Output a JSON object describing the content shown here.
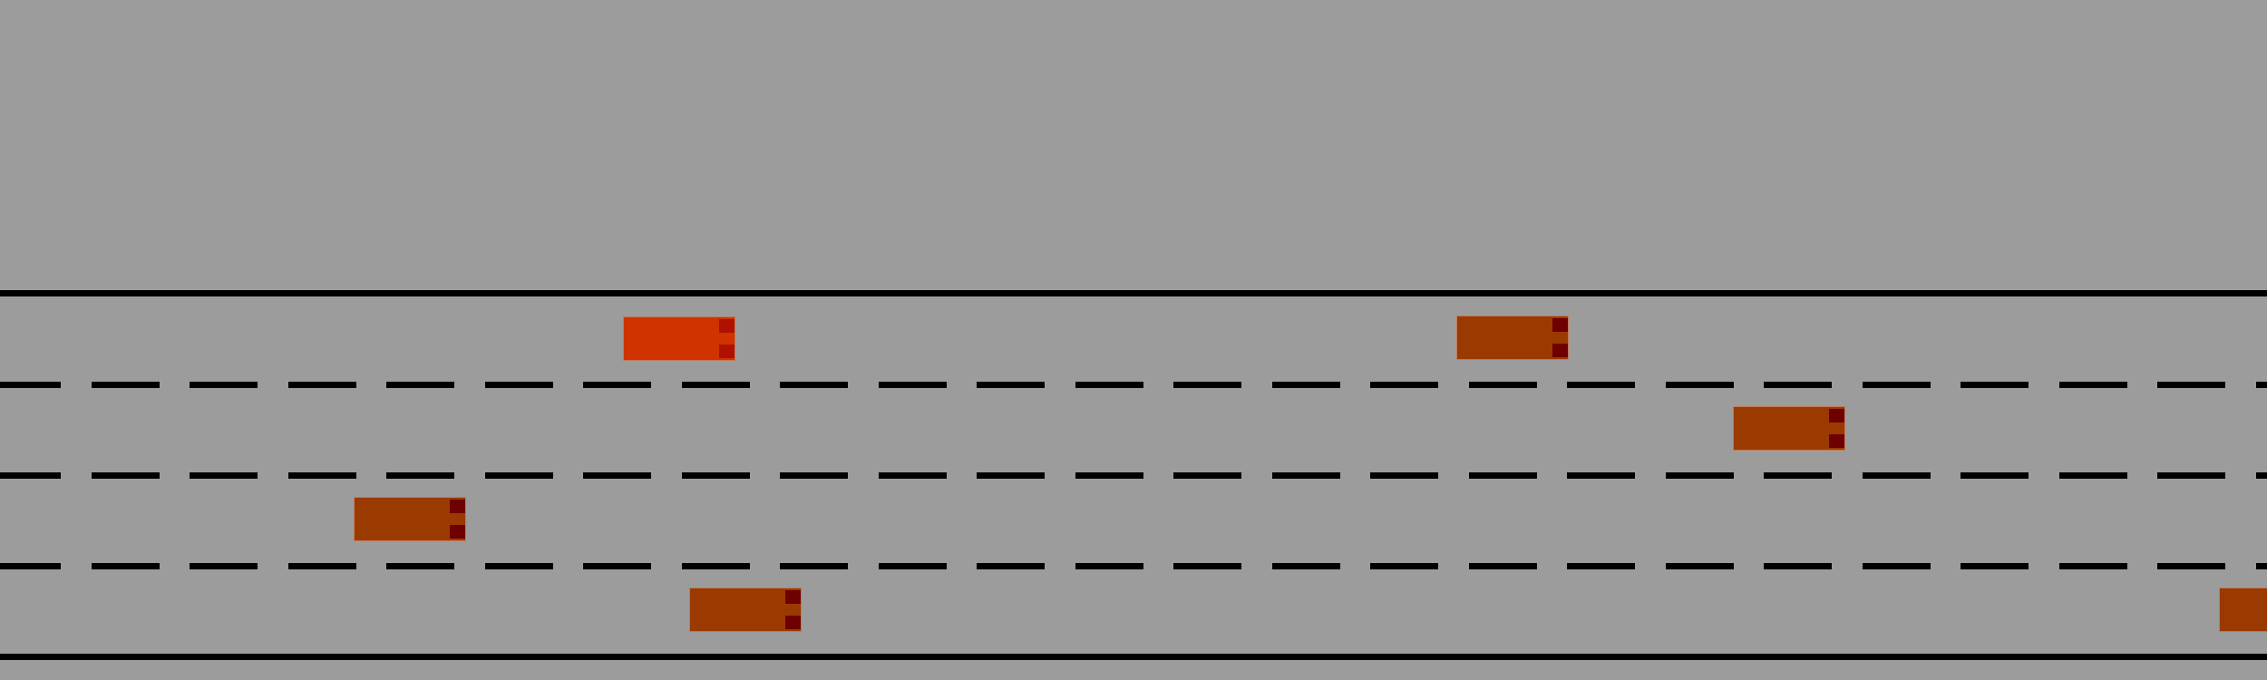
{
  "road": {
    "lanes": 4,
    "lane_markings": "dashed",
    "colors": {
      "ground": "#9c9c9c",
      "marking": "#000000"
    }
  },
  "vehicles": [
    {
      "role": "ego",
      "lane": 1,
      "color": "#d03200",
      "light_color": "#b01000"
    },
    {
      "role": "other",
      "lane": 1,
      "color": "#9b3a00",
      "light_color": "#6e0000"
    },
    {
      "role": "other",
      "lane": 2,
      "color": "#9b3a00",
      "light_color": "#6e0000"
    },
    {
      "role": "other",
      "lane": 3,
      "color": "#9b3a00",
      "light_color": "#6e0000"
    },
    {
      "role": "other",
      "lane": 4,
      "color": "#9b3a00",
      "light_color": "#6e0000"
    },
    {
      "role": "other",
      "lane": 4,
      "color": "#9b3a00",
      "light_color": "#6e0000"
    }
  ]
}
